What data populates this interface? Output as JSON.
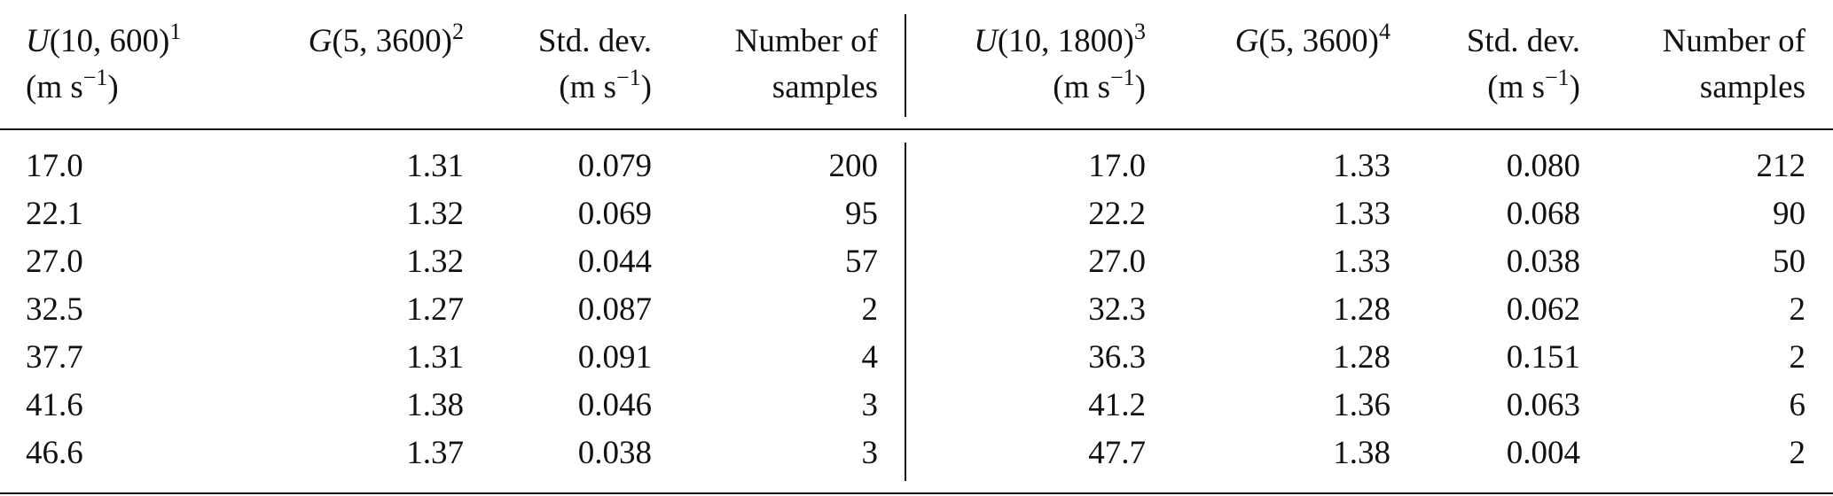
{
  "table": {
    "header": [
      [
        [
          {
            "t": "U",
            "s": "i"
          },
          {
            "t": "(10, 600)",
            "s": "n"
          },
          {
            "t": "1",
            "s": "sup"
          }
        ],
        [
          {
            "t": "(m s",
            "s": "n"
          },
          {
            "t": "−1",
            "s": "sup"
          },
          {
            "t": ")",
            "s": "n"
          }
        ]
      ],
      [
        [
          {
            "t": "G",
            "s": "i"
          },
          {
            "t": "(5, 3600)",
            "s": "n"
          },
          {
            "t": "2",
            "s": "sup"
          }
        ]
      ],
      [
        [
          {
            "t": "Std. dev.",
            "s": "n"
          }
        ],
        [
          {
            "t": "(m s",
            "s": "n"
          },
          {
            "t": "−1",
            "s": "sup"
          },
          {
            "t": ")",
            "s": "n"
          }
        ]
      ],
      [
        [
          {
            "t": "Number of",
            "s": "n"
          }
        ],
        [
          {
            "t": "samples",
            "s": "n"
          }
        ]
      ],
      [
        [
          {
            "t": "U",
            "s": "i"
          },
          {
            "t": "(10, 1800)",
            "s": "n"
          },
          {
            "t": "3",
            "s": "sup"
          }
        ],
        [
          {
            "t": "(m s",
            "s": "n"
          },
          {
            "t": "−1",
            "s": "sup"
          },
          {
            "t": ")",
            "s": "n"
          }
        ]
      ],
      [
        [
          {
            "t": "G",
            "s": "i"
          },
          {
            "t": "(5, 3600)",
            "s": "n"
          },
          {
            "t": "4",
            "s": "sup"
          }
        ]
      ],
      [
        [
          {
            "t": "Std. dev.",
            "s": "n"
          }
        ],
        [
          {
            "t": "(m s",
            "s": "n"
          },
          {
            "t": "−1",
            "s": "sup"
          },
          {
            "t": ")",
            "s": "n"
          }
        ]
      ],
      [
        [
          {
            "t": "Number of",
            "s": "n"
          }
        ],
        [
          {
            "t": "samples",
            "s": "n"
          }
        ]
      ]
    ],
    "rows": [
      [
        "17.0",
        "1.31",
        "0.079",
        "200",
        "17.0",
        "1.33",
        "0.080",
        "212"
      ],
      [
        "22.1",
        "1.32",
        "0.069",
        "95",
        "22.2",
        "1.33",
        "0.068",
        "90"
      ],
      [
        "27.0",
        "1.32",
        "0.044",
        "57",
        "27.0",
        "1.33",
        "0.038",
        "50"
      ],
      [
        "32.5",
        "1.27",
        "0.087",
        "2",
        "32.3",
        "1.28",
        "0.062",
        "2"
      ],
      [
        "37.7",
        "1.31",
        "0.091",
        "4",
        "36.3",
        "1.28",
        "0.151",
        "2"
      ],
      [
        "41.6",
        "1.38",
        "0.046",
        "3",
        "41.2",
        "1.36",
        "0.063",
        "6"
      ],
      [
        "46.6",
        "1.37",
        "0.038",
        "3",
        "47.7",
        "1.38",
        "0.004",
        "2"
      ]
    ]
  }
}
